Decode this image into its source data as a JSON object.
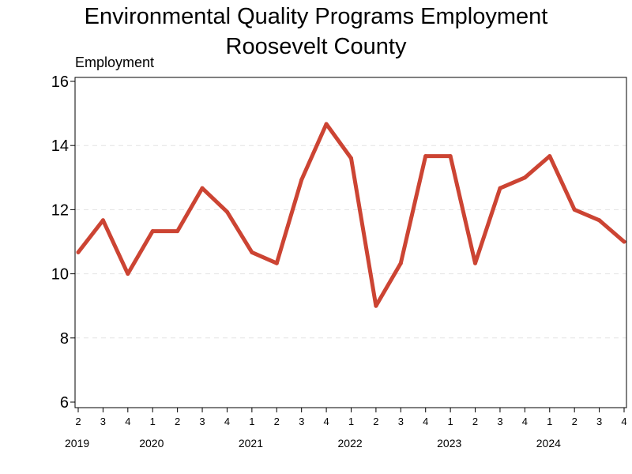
{
  "chart_data": {
    "type": "line",
    "title_line1": "Environmental Quality Programs Employment",
    "title_line2": "Roosevelt County",
    "ylabel": "Employment",
    "xlabel": "",
    "ylim": [
      6,
      16
    ],
    "yticks": [
      6,
      8,
      10,
      12,
      14,
      16
    ],
    "grid": "horizontal-dashed",
    "line_color": "#cc4433",
    "x": [
      "2",
      "3",
      "4",
      "1",
      "2",
      "3",
      "4",
      "1",
      "2",
      "3",
      "4",
      "1",
      "2",
      "3",
      "4",
      "1",
      "2",
      "3",
      "4",
      "1",
      "2",
      "3",
      "4"
    ],
    "years": [
      {
        "label": "2019",
        "index": 0
      },
      {
        "label": "2020",
        "index": 3
      },
      {
        "label": "2021",
        "index": 7
      },
      {
        "label": "2022",
        "index": 11
      },
      {
        "label": "2023",
        "index": 15
      },
      {
        "label": "2024",
        "index": 19
      }
    ],
    "series": [
      {
        "values": [
          10.67,
          11.67,
          10.0,
          11.33,
          11.33,
          12.67,
          11.93,
          10.67,
          10.33,
          12.93,
          14.67,
          13.6,
          9.0,
          10.33,
          13.67,
          13.67,
          10.33,
          12.67,
          13.0,
          13.67,
          12.0,
          11.67,
          11.0
        ]
      }
    ]
  }
}
